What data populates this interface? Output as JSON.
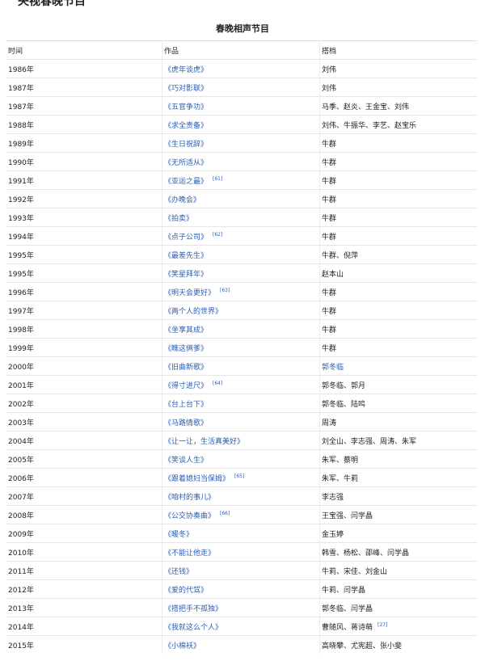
{
  "section_heading": "央视春晚节目",
  "table": {
    "caption": "春晚相声节目",
    "headers": [
      "时间",
      "作品",
      "搭档"
    ],
    "rows": [
      {
        "year": "1986年",
        "work": "《虎年谈虎》",
        "ref": "",
        "partners": "刘伟",
        "partners_link": false,
        "partners_ref": ""
      },
      {
        "year": "1987年",
        "work": "《巧对影联》",
        "ref": "",
        "partners": "刘伟",
        "partners_link": false,
        "partners_ref": ""
      },
      {
        "year": "1987年",
        "work": "《五官争功》",
        "ref": "",
        "partners": "马季、赵炎、王金宝、刘伟",
        "partners_link": false,
        "partners_ref": ""
      },
      {
        "year": "1988年",
        "work": "《求全责备》",
        "ref": "",
        "partners": "刘伟、牛振华、李艺、赵宝乐",
        "partners_link": false,
        "partners_ref": ""
      },
      {
        "year": "1989年",
        "work": "《生日祝辞》",
        "ref": "",
        "partners": "牛群",
        "partners_link": false,
        "partners_ref": ""
      },
      {
        "year": "1990年",
        "work": "《无所适从》",
        "ref": "",
        "partners": "牛群",
        "partners_link": false,
        "partners_ref": ""
      },
      {
        "year": "1991年",
        "work": "《亚运之最》",
        "ref": "[61]",
        "partners": "牛群",
        "partners_link": false,
        "partners_ref": ""
      },
      {
        "year": "1992年",
        "work": "《办晚会》",
        "ref": "",
        "partners": "牛群",
        "partners_link": false,
        "partners_ref": ""
      },
      {
        "year": "1993年",
        "work": "《拍卖》",
        "ref": "",
        "partners": "牛群",
        "partners_link": false,
        "partners_ref": ""
      },
      {
        "year": "1994年",
        "work": "《点子公司》",
        "ref": "[62]",
        "partners": "牛群",
        "partners_link": false,
        "partners_ref": ""
      },
      {
        "year": "1995年",
        "work": "《最差先生》",
        "ref": "",
        "partners": "牛群、倪萍",
        "partners_link": false,
        "partners_ref": ""
      },
      {
        "year": "1995年",
        "work": "《笑星拜年》",
        "ref": "",
        "partners": "赵本山",
        "partners_link": false,
        "partners_ref": ""
      },
      {
        "year": "1996年",
        "work": "《明天会更好》",
        "ref": "[63]",
        "partners": "牛群",
        "partners_link": false,
        "partners_ref": ""
      },
      {
        "year": "1997年",
        "work": "《两个人的世界》",
        "ref": "",
        "partners": "牛群",
        "partners_link": false,
        "partners_ref": ""
      },
      {
        "year": "1998年",
        "work": "《坐享其成》",
        "ref": "",
        "partners": "牛群",
        "partners_link": false,
        "partners_ref": ""
      },
      {
        "year": "1999年",
        "work": "《瞧这俩爹》",
        "ref": "",
        "partners": "牛群",
        "partners_link": false,
        "partners_ref": ""
      },
      {
        "year": "2000年",
        "work": "《旧曲新歌》",
        "ref": "",
        "partners": "郭冬临",
        "partners_link": true,
        "partners_ref": ""
      },
      {
        "year": "2001年",
        "work": "《得寸进尺》",
        "ref": "[64]",
        "partners": "郭冬临、郭月",
        "partners_link": false,
        "partners_ref": ""
      },
      {
        "year": "2002年",
        "work": "《台上台下》",
        "ref": "",
        "partners": "郭冬临、陆鸣",
        "partners_link": false,
        "partners_ref": ""
      },
      {
        "year": "2003年",
        "work": "《马路情歌》",
        "ref": "",
        "partners": "周涛",
        "partners_link": false,
        "partners_ref": ""
      },
      {
        "year": "2004年",
        "work": "《让一让，生活真美好》",
        "ref": "",
        "partners": "刘全山、李志强、周涛、朱军",
        "partners_link": false,
        "partners_ref": ""
      },
      {
        "year": "2005年",
        "work": "《笑谈人生》",
        "ref": "",
        "partners": "朱军、蔡明",
        "partners_link": false,
        "partners_ref": ""
      },
      {
        "year": "2006年",
        "work": "《跟着媳妇当保姆》",
        "ref": "[65]",
        "partners": "朱军、牛莉",
        "partners_link": false,
        "partners_ref": ""
      },
      {
        "year": "2007年",
        "work": "《咱村的事儿》",
        "ref": "",
        "partners": "李志强",
        "partners_link": false,
        "partners_ref": ""
      },
      {
        "year": "2008年",
        "work": "《公交协奏曲》",
        "ref": "[66]",
        "partners": "王宝强、闫学晶",
        "partners_link": false,
        "partners_ref": ""
      },
      {
        "year": "2009年",
        "work": "《暖冬》",
        "ref": "",
        "partners": "金玉婷",
        "partners_link": false,
        "partners_ref": ""
      },
      {
        "year": "2010年",
        "work": "《不能让他走》",
        "ref": "",
        "partners": "韩雪、杨松、邵峰、闫学晶",
        "partners_link": false,
        "partners_ref": ""
      },
      {
        "year": "2011年",
        "work": "《还钱》",
        "ref": "",
        "partners": "牛莉、宋佳、刘金山",
        "partners_link": false,
        "partners_ref": ""
      },
      {
        "year": "2012年",
        "work": "《爱的代驾》",
        "ref": "",
        "partners": "牛莉、闫学晶",
        "partners_link": false,
        "partners_ref": ""
      },
      {
        "year": "2013年",
        "work": "《搭把手不孤独》",
        "ref": "",
        "partners": "郭冬临、闫学晶",
        "partners_link": false,
        "partners_ref": ""
      },
      {
        "year": "2014年",
        "work": "《我就这么个人》",
        "ref": "",
        "partners": "曹随风、蒋诗萌",
        "partners_link": false,
        "partners_ref": "[27]"
      },
      {
        "year": "2015年",
        "work": "《小棉袄》",
        "ref": "",
        "partners": "高晓攀、尤宪超、张小斐",
        "partners_link": false,
        "partners_ref": ""
      }
    ]
  },
  "colors": {
    "link": "#2a5db0",
    "text": "#222222",
    "border": "#e6e6e6"
  }
}
